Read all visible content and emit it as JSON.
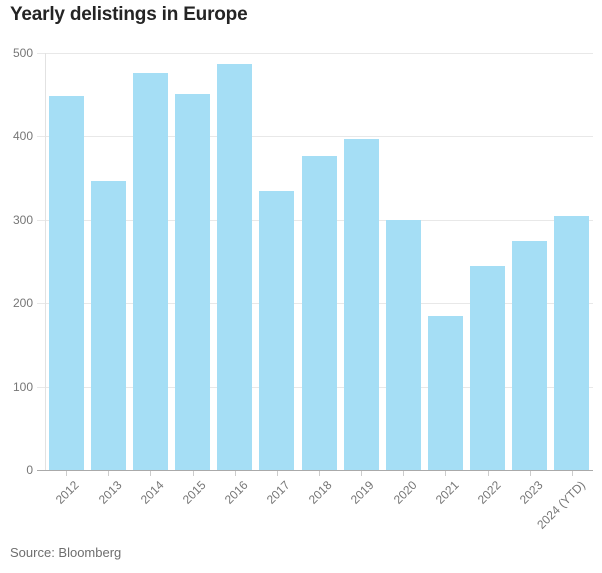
{
  "header": {
    "title": "Yearly delistings in Europe"
  },
  "chart_data": {
    "type": "bar",
    "title": "Yearly delistings in Europe",
    "categories": [
      "2012",
      "2013",
      "2014",
      "2015",
      "2016",
      "2017",
      "2018",
      "2019",
      "2020",
      "2021",
      "2022",
      "2023",
      "2024 (YTD)"
    ],
    "values": [
      448,
      347,
      476,
      451,
      487,
      335,
      377,
      397,
      300,
      185,
      245,
      275,
      305
    ],
    "xlabel": "",
    "ylabel": "",
    "ylim": [
      0,
      500
    ],
    "yticks": [
      0,
      100,
      200,
      300,
      400,
      500
    ],
    "grid": "horizontal",
    "legend": "none",
    "bar_color": "#a5def5"
  },
  "source": {
    "label": "Source: Bloomberg"
  },
  "colors": {
    "background": "#ffffff",
    "title_text": "#242424",
    "axis_text": "#767676",
    "gridline": "#e8e8e8",
    "baseline": "#aaaaaa",
    "bar": "#a5def5"
  }
}
